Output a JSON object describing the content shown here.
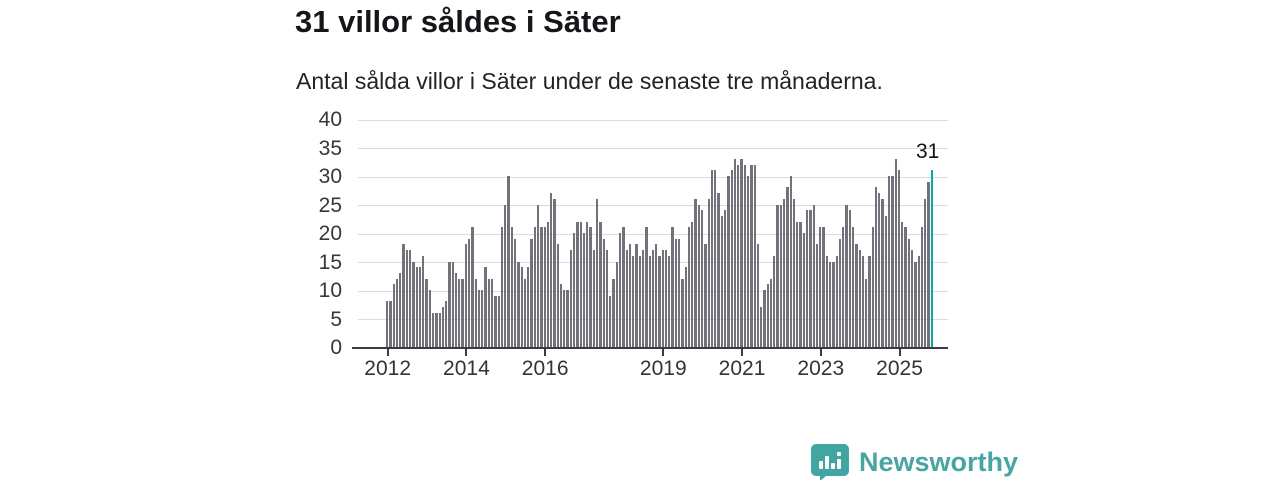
{
  "header": {
    "title": "31 villor såldes i Säter",
    "subtitle": "Antal sålda villor i Säter under de senaste tre månaderna."
  },
  "chart_data": {
    "type": "bar",
    "title": "31 villor såldes i Säter",
    "ylabel": "",
    "xlabel": "",
    "ylim": [
      0,
      40
    ],
    "yticks": [
      0,
      5,
      10,
      15,
      20,
      25,
      30,
      35,
      40
    ],
    "grid": true,
    "x_start": "2012-01",
    "x_frequency": "monthly",
    "xticks": [
      {
        "label": "2012",
        "year": 2012
      },
      {
        "label": "2014",
        "year": 2014
      },
      {
        "label": "2016",
        "year": 2016
      },
      {
        "label": "2019",
        "year": 2019
      },
      {
        "label": "2021",
        "year": 2021
      },
      {
        "label": "2023",
        "year": 2023
      },
      {
        "label": "2025",
        "year": 2025
      }
    ],
    "values": [
      8,
      8,
      11,
      12,
      13,
      18,
      17,
      17,
      15,
      14,
      14,
      16,
      12,
      10,
      6,
      6,
      6,
      7,
      8,
      15,
      15,
      13,
      12,
      12,
      18,
      19,
      21,
      12,
      10,
      10,
      14,
      12,
      12,
      9,
      9,
      21,
      25,
      30,
      21,
      19,
      15,
      14,
      12,
      14,
      19,
      21,
      25,
      21,
      21,
      22,
      27,
      26,
      18,
      11,
      10,
      10,
      17,
      20,
      22,
      22,
      20,
      22,
      21,
      17,
      26,
      22,
      19,
      17,
      9,
      12,
      15,
      20,
      21,
      17,
      18,
      16,
      18,
      16,
      17,
      21,
      16,
      17,
      18,
      16,
      17,
      17,
      16,
      21,
      19,
      19,
      12,
      14,
      21,
      22,
      26,
      25,
      24,
      18,
      26,
      31,
      31,
      27,
      23,
      24,
      30,
      31,
      33,
      32,
      33,
      32,
      30,
      32,
      32,
      18,
      7,
      10,
      11,
      12,
      16,
      25,
      25,
      26,
      28,
      30,
      26,
      22,
      22,
      20,
      24,
      24,
      25,
      18,
      21,
      21,
      16,
      15,
      15,
      16,
      19,
      21,
      25,
      24,
      21,
      18,
      17,
      16,
      12,
      16,
      21,
      28,
      27,
      26,
      23,
      30,
      30,
      33,
      31,
      22,
      21,
      19,
      17,
      15,
      16,
      21,
      26,
      29,
      31
    ],
    "highlight": {
      "index": 166,
      "value": 31,
      "annotation_label": "31"
    },
    "colors": {
      "bar": "#72727b",
      "highlight": "#0aa8a1",
      "grid": "#dcdcde",
      "axis": "#3b3b41",
      "tick_text": "#37373b"
    }
  },
  "footer": {
    "brand": "Newsworthy",
    "logo_icon": "speech-bubble-bar-chart-icon",
    "brand_color": "#48a5a2"
  }
}
